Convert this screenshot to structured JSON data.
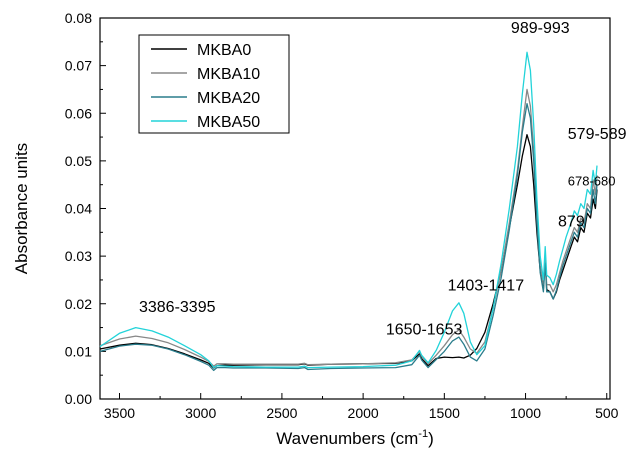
{
  "chart_data": {
    "type": "line",
    "title": "",
    "xlabel": "Wavenumbers (cm",
    "xlabel_sup": "-1",
    "xlabel_close": ")",
    "ylabel": "Absorbance units",
    "xlim": [
      3620,
      480
    ],
    "ylim": [
      0,
      0.08
    ],
    "x_reversed": true,
    "x_ticks": [
      3500,
      3000,
      2500,
      2000,
      1500,
      1000,
      500
    ],
    "y_ticks": [
      0.0,
      0.01,
      0.02,
      0.03,
      0.04,
      0.05,
      0.06,
      0.07,
      0.08
    ],
    "x_tick_labels": [
      "3500",
      "3000",
      "2500",
      "2000",
      "1500",
      "1000",
      "500"
    ],
    "y_tick_labels": [
      "0.00",
      "0.01",
      "0.02",
      "0.03",
      "0.04",
      "0.05",
      "0.06",
      "0.07",
      "0.08"
    ],
    "grid": false,
    "legend_position": "top-left",
    "x": [
      3620,
      3500,
      3400,
      3300,
      3200,
      3100,
      3000,
      2950,
      2920,
      2900,
      2850,
      2800,
      2600,
      2400,
      2360,
      2340,
      2200,
      2000,
      1800,
      1700,
      1653,
      1640,
      1600,
      1550,
      1500,
      1450,
      1410,
      1380,
      1340,
      1300,
      1250,
      1200,
      1150,
      1100,
      1050,
      1020,
      991,
      970,
      950,
      930,
      910,
      890,
      879,
      870,
      850,
      830,
      810,
      790,
      770,
      750,
      720,
      700,
      680,
      660,
      640,
      620,
      600,
      584,
      570,
      560
    ],
    "series": [
      {
        "name": "MKBA0",
        "color": "#000000",
        "values": [
          0.0105,
          0.0113,
          0.0117,
          0.0114,
          0.0106,
          0.0095,
          0.0082,
          0.0075,
          0.0065,
          0.007,
          0.0071,
          0.0071,
          0.0072,
          0.0072,
          0.0074,
          0.0071,
          0.0073,
          0.0074,
          0.0075,
          0.008,
          0.0095,
          0.0085,
          0.007,
          0.0085,
          0.0088,
          0.0087,
          0.0088,
          0.0086,
          0.0092,
          0.0106,
          0.014,
          0.02,
          0.027,
          0.036,
          0.045,
          0.051,
          0.0555,
          0.053,
          0.045,
          0.035,
          0.027,
          0.023,
          0.03,
          0.023,
          0.0225,
          0.021,
          0.0225,
          0.025,
          0.027,
          0.029,
          0.032,
          0.034,
          0.033,
          0.036,
          0.035,
          0.039,
          0.038,
          0.042,
          0.04,
          0.044
        ]
      },
      {
        "name": "MKBA10",
        "color": "#888888",
        "values": [
          0.0112,
          0.0126,
          0.0132,
          0.0127,
          0.0118,
          0.0104,
          0.0088,
          0.0079,
          0.0069,
          0.0074,
          0.0074,
          0.0073,
          0.0073,
          0.0073,
          0.0075,
          0.0072,
          0.0073,
          0.0074,
          0.0076,
          0.0082,
          0.01,
          0.009,
          0.0074,
          0.0092,
          0.0112,
          0.0135,
          0.0145,
          0.013,
          0.0105,
          0.0096,
          0.012,
          0.019,
          0.027,
          0.037,
          0.048,
          0.057,
          0.065,
          0.0615,
          0.052,
          0.039,
          0.028,
          0.024,
          0.03,
          0.024,
          0.024,
          0.0225,
          0.024,
          0.0265,
          0.029,
          0.031,
          0.034,
          0.036,
          0.035,
          0.038,
          0.037,
          0.041,
          0.04,
          0.046,
          0.043,
          0.047
        ]
      },
      {
        "name": "MKBA20",
        "color": "#2a7d8c",
        "values": [
          0.01,
          0.0111,
          0.0115,
          0.0113,
          0.0105,
          0.0093,
          0.0079,
          0.0071,
          0.006,
          0.0066,
          0.0066,
          0.0065,
          0.0065,
          0.0064,
          0.0066,
          0.0062,
          0.0064,
          0.0065,
          0.0066,
          0.0072,
          0.0092,
          0.0082,
          0.0066,
          0.0083,
          0.01,
          0.0122,
          0.013,
          0.0115,
          0.0088,
          0.008,
          0.0105,
          0.0175,
          0.0255,
          0.0355,
          0.047,
          0.056,
          0.062,
          0.059,
          0.05,
          0.037,
          0.0265,
          0.0225,
          0.0285,
          0.0225,
          0.0225,
          0.021,
          0.0228,
          0.0255,
          0.028,
          0.03,
          0.033,
          0.035,
          0.034,
          0.037,
          0.036,
          0.04,
          0.039,
          0.044,
          0.041,
          0.045
        ]
      },
      {
        "name": "MKBA50",
        "color": "#22d3d9",
        "values": [
          0.011,
          0.0138,
          0.015,
          0.0143,
          0.013,
          0.0112,
          0.0093,
          0.008,
          0.0066,
          0.007,
          0.0069,
          0.0068,
          0.0067,
          0.0067,
          0.0069,
          0.0066,
          0.0067,
          0.0068,
          0.0071,
          0.008,
          0.0102,
          0.0092,
          0.0076,
          0.0102,
          0.014,
          0.0185,
          0.0202,
          0.018,
          0.012,
          0.0093,
          0.0112,
          0.019,
          0.0285,
          0.04,
          0.053,
          0.064,
          0.0728,
          0.069,
          0.0575,
          0.042,
          0.03,
          0.025,
          0.032,
          0.026,
          0.0255,
          0.024,
          0.0262,
          0.029,
          0.0315,
          0.034,
          0.037,
          0.0395,
          0.0385,
          0.041,
          0.04,
          0.044,
          0.043,
          0.048,
          0.045,
          0.049
        ]
      }
    ],
    "annotations": [
      {
        "text": "3386-3395",
        "x": 3380,
        "y": 0.0183
      },
      {
        "text": "1650-1653",
        "x": 1860,
        "y": 0.0135
      },
      {
        "text": "1403-1417",
        "x": 1480,
        "y": 0.0228
      },
      {
        "text": "989-993",
        "x": 1090,
        "y": 0.0768
      },
      {
        "text": "579-589",
        "x": 740,
        "y": 0.0546
      },
      {
        "text": "678-680",
        "x": 740,
        "y": 0.0448
      },
      {
        "text": "879",
        "x": 800,
        "y": 0.0362
      }
    ]
  }
}
